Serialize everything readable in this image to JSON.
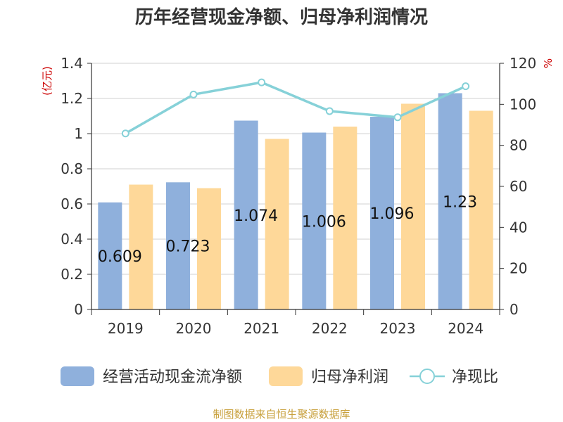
{
  "chart_data": {
    "type": "bar",
    "title": "历年经营现金净额、归母净利润情况",
    "categories": [
      "2019",
      "2020",
      "2021",
      "2022",
      "2023",
      "2024"
    ],
    "series": [
      {
        "name": "经营活动现金流净额",
        "type": "bar",
        "axis": "left",
        "color": "#8fb0dc",
        "values": [
          0.609,
          0.723,
          1.074,
          1.006,
          1.096,
          1.23
        ],
        "labels": [
          "0.609",
          "0.723",
          "1.074",
          "1.006",
          "1.096",
          "1.23"
        ]
      },
      {
        "name": "归母净利润",
        "type": "bar",
        "axis": "left",
        "color": "#fed899",
        "values": [
          0.71,
          0.69,
          0.97,
          1.04,
          1.17,
          1.13
        ]
      },
      {
        "name": "净现比",
        "type": "line",
        "axis": "right",
        "color": "#86d1d8",
        "values": [
          85.8,
          104.8,
          110.7,
          96.7,
          93.7,
          108.8
        ]
      }
    ],
    "ylabel_left": "(亿元)",
    "ylabel_right": "%",
    "ylim_left": [
      0,
      1.4
    ],
    "ylim_right": [
      0,
      120
    ],
    "yticks_left": [
      "0",
      "0.2",
      "0.4",
      "0.6",
      "0.8",
      "1",
      "1.2",
      "1.4"
    ],
    "yticks_right": [
      "0",
      "20",
      "40",
      "60",
      "80",
      "100",
      "120"
    ],
    "legend_position": "bottom",
    "grid": true
  },
  "footer": {
    "source": "制图数据来自恒生聚源数据库"
  }
}
